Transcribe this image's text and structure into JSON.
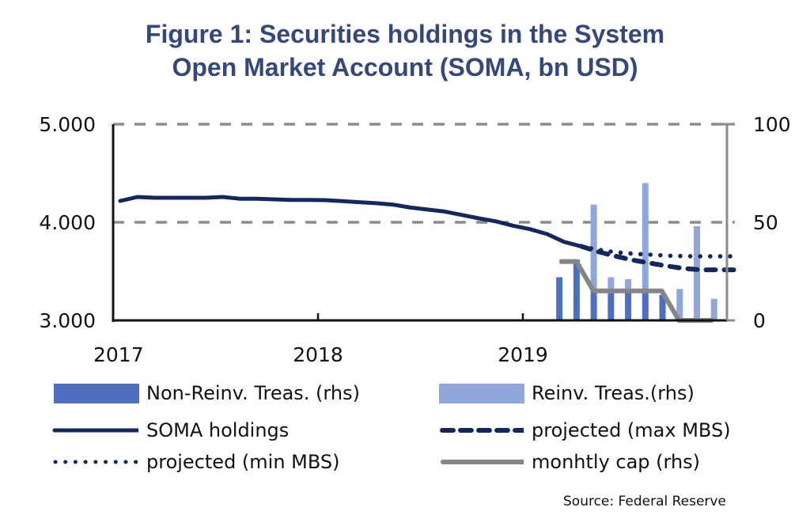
{
  "title_line1": "Figure 1: Securities holdings in the System",
  "title_line2": "Open Market Account (SOMA, bn USD)",
  "source": "Source: Federal Reserve",
  "colors": {
    "title": "#34487a",
    "soma": "#15285e",
    "non_reinv": "#4e6fc0",
    "reinv": "#91a6db",
    "cap": "#858585",
    "grid": "#8c8c8c"
  },
  "chart_data": {
    "type": "line",
    "title": "Figure 1: Securities holdings in the System Open Market Account (SOMA, bn USD)",
    "xlabel": "",
    "ylabel": "bn USD",
    "x_ticks": [
      "2017",
      "2018",
      "2019"
    ],
    "y_left": {
      "range": [
        3000,
        5000
      ],
      "ticks": [
        "3.000",
        "4.000",
        "5.000"
      ],
      "tick_values": [
        3000,
        4000,
        5000
      ]
    },
    "y_right": {
      "range": [
        0,
        100
      ],
      "ticks": [
        "0",
        "50",
        "100"
      ],
      "tick_values": [
        0,
        50,
        100
      ]
    },
    "grid": "horizontal dashed",
    "legend_position": "bottom",
    "months": [
      "2017-01",
      "2017-02",
      "2017-03",
      "2017-04",
      "2017-05",
      "2017-06",
      "2017-07",
      "2017-08",
      "2017-09",
      "2017-10",
      "2017-11",
      "2017-12",
      "2018-01",
      "2018-02",
      "2018-03",
      "2018-04",
      "2018-05",
      "2018-06",
      "2018-07",
      "2018-08",
      "2018-09",
      "2018-10",
      "2018-11",
      "2018-12",
      "2019-01",
      "2019-02",
      "2019-03",
      "2019-04",
      "2019-05",
      "2019-06",
      "2019-07",
      "2019-08",
      "2019-09",
      "2019-10",
      "2019-11",
      "2019-12"
    ],
    "series": [
      {
        "name": "SOMA holdings",
        "axis": "left",
        "style": "solid",
        "start_month": "2017-01",
        "values": [
          4218,
          4258,
          4250,
          4250,
          4250,
          4250,
          4258,
          4240,
          4240,
          4234,
          4228,
          4228,
          4226,
          4215,
          4205,
          4194,
          4180,
          4150,
          4130,
          4110,
          4075,
          4040,
          4010,
          3965,
          3930,
          3880,
          3800,
          3755
        ]
      },
      {
        "name": "projected (max MBS)",
        "axis": "left",
        "style": "dashed",
        "start_month": "2019-04",
        "values": [
          3755,
          3700,
          3655,
          3615,
          3585,
          3555,
          3530,
          3515,
          3515,
          3515
        ]
      },
      {
        "name": "projected (min MBS)",
        "axis": "left",
        "style": "dotted",
        "start_month": "2019-04",
        "values": [
          3755,
          3720,
          3695,
          3680,
          3670,
          3660,
          3655,
          3653,
          3653,
          3653
        ]
      },
      {
        "name": "monhtly cap (rhs)",
        "axis": "right",
        "style": "solid-gray",
        "start_month": "2019-03",
        "values": [
          30,
          30,
          15,
          15,
          15,
          15,
          15,
          0,
          0,
          0
        ]
      }
    ],
    "bars": {
      "start_month": "2019-03",
      "stacked": true,
      "axis": "right",
      "series": [
        {
          "name": "Non-Reinv. Treas. (rhs)",
          "values": [
            22,
            31,
            15,
            15,
            15,
            15,
            13,
            0,
            0,
            0
          ]
        },
        {
          "name": "Reinv. Treas.(rhs)",
          "values": [
            0,
            0,
            44,
            7,
            6,
            55,
            0,
            16,
            48,
            11
          ]
        }
      ]
    }
  },
  "legend": [
    {
      "label": "Non-Reinv. Treas. (rhs)",
      "kind": "bar-dark"
    },
    {
      "label": "Reinv. Treas.(rhs)",
      "kind": "bar-light"
    },
    {
      "label": "SOMA holdings",
      "kind": "line-solid"
    },
    {
      "label": "projected (max MBS)",
      "kind": "line-dashed"
    },
    {
      "label": "projected (min MBS)",
      "kind": "line-dotted"
    },
    {
      "label": "monhtly cap (rhs)",
      "kind": "line-gray"
    }
  ]
}
